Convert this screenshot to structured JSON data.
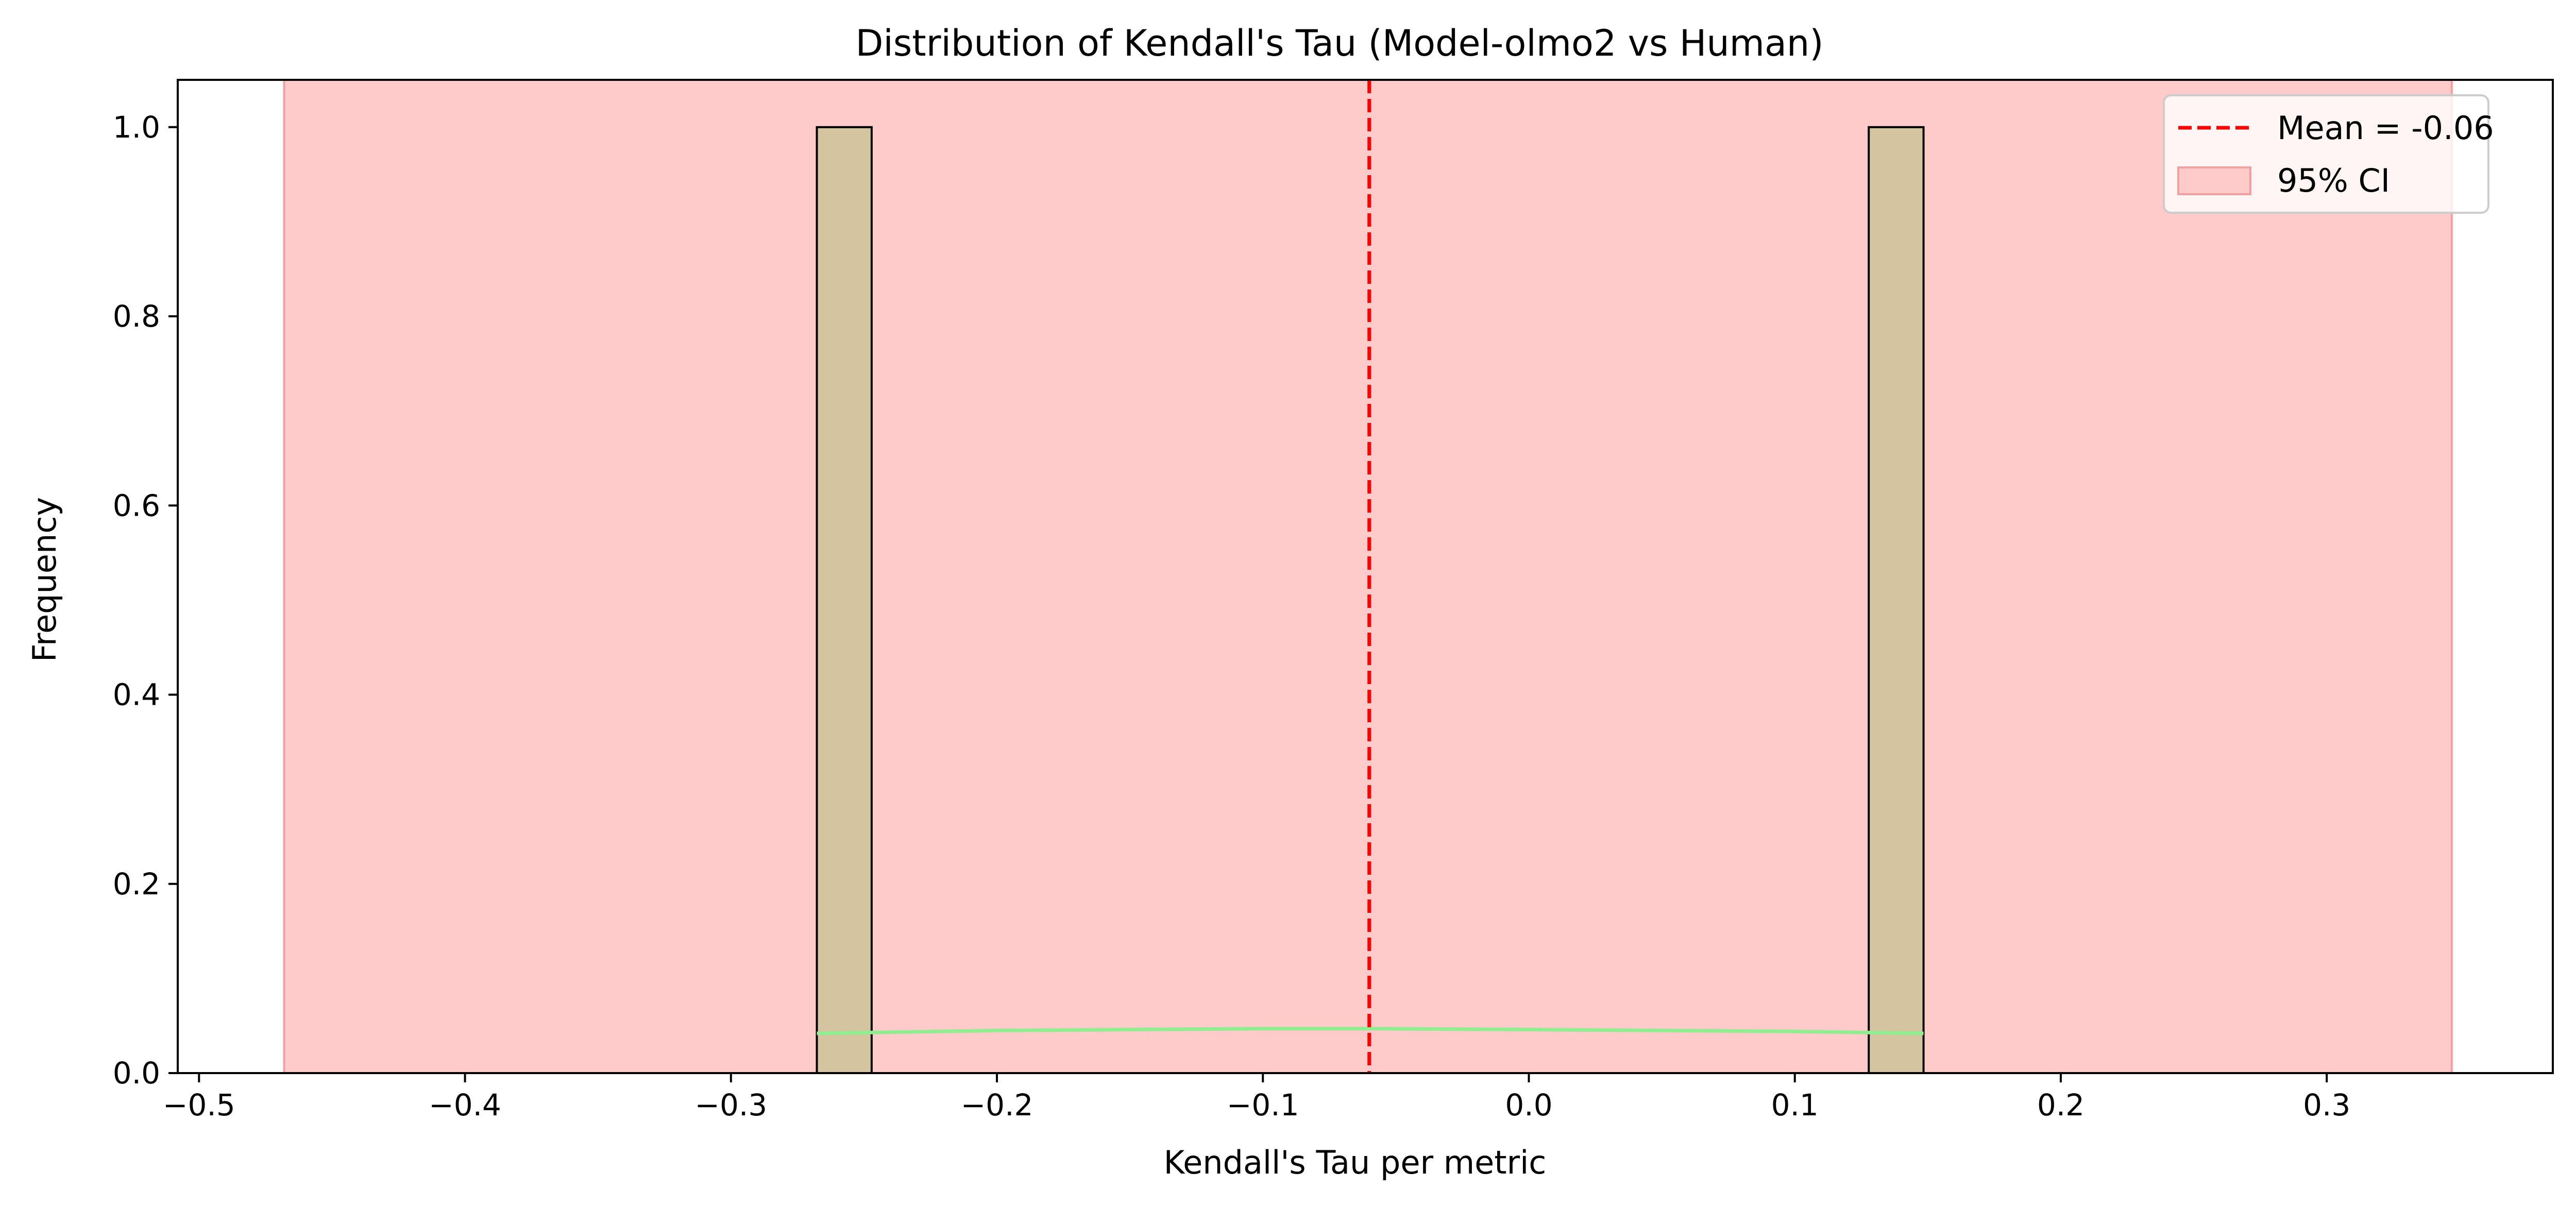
{
  "chart_data": {
    "type": "bar",
    "title": "Distribution of Kendall's Tau (Model-olmo2 vs Human)",
    "xlabel": "Kendall's Tau per metric",
    "ylabel": "Frequency",
    "xlim": [
      -0.508,
      0.385
    ],
    "ylim": [
      0,
      1.05
    ],
    "xticks": [
      -0.5,
      -0.4,
      -0.3,
      -0.2,
      -0.1,
      0.0,
      0.1,
      0.2,
      0.3
    ],
    "xtick_labels": [
      "−0.5",
      "−0.4",
      "−0.3",
      "−0.2",
      "−0.1",
      "0.0",
      "0.1",
      "0.2",
      "0.3"
    ],
    "yticks": [
      0.0,
      0.2,
      0.4,
      0.6,
      0.8,
      1.0
    ],
    "ytick_labels": [
      "0.0",
      "0.2",
      "0.4",
      "0.6",
      "0.8",
      "1.0"
    ],
    "histogram_bins": [
      {
        "x0": -0.2677,
        "x1": -0.2471,
        "count": 1
      },
      {
        "x0": 0.1278,
        "x1": 0.1484,
        "count": 1
      }
    ],
    "kde_curve": {
      "x": [
        -0.2677,
        -0.2,
        -0.1,
        -0.06,
        0.0,
        0.1,
        0.1484
      ],
      "y": [
        0.042,
        0.045,
        0.047,
        0.047,
        0.046,
        0.044,
        0.042
      ]
    },
    "mean_line": {
      "x": -0.06,
      "label": "Mean = -0.06"
    },
    "ci_band": {
      "x0": -0.468,
      "x1": 0.347,
      "label": "95% CI"
    },
    "legend_position": "upper right",
    "grid": false,
    "colors": {
      "bar_fill": "#d4c4a0",
      "bar_edge": "#000000",
      "mean_line": "#ff0000",
      "ci_band": "#ffcaca",
      "ci_band_edge": "#f5a0a0",
      "kde_line": "#90ee90"
    }
  }
}
